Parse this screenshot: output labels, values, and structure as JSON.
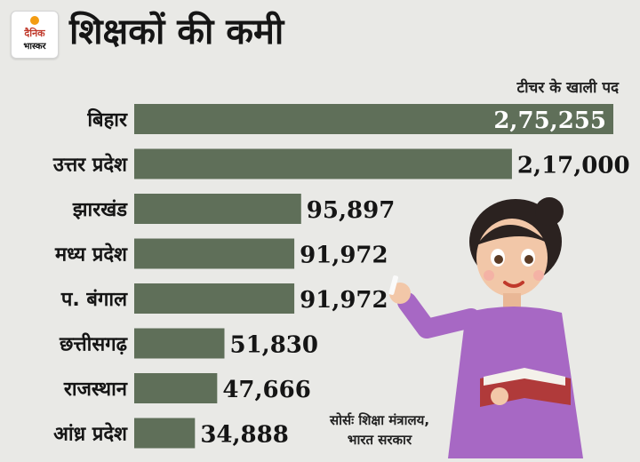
{
  "header": {
    "logo_text": [
      "दैनिक",
      "भास्कर"
    ],
    "title": "शिक्षकों की कमी"
  },
  "chart_data": {
    "type": "bar",
    "orientation": "horizontal",
    "categories": [
      "बिहार",
      "उत्तर प्रदेश",
      "झारखंड",
      "मध्य प्रदेश",
      "प. बंगाल",
      "छत्तीसगढ़",
      "राजस्थान",
      "आंध्र प्रदेश"
    ],
    "values": [
      275255,
      217000,
      95897,
      91972,
      91972,
      51830,
      47666,
      34888
    ],
    "value_labels": [
      "2,75,255",
      "2,17,000",
      "95,897",
      "91,972",
      "91,972",
      "51,830",
      "47,666",
      "34,888"
    ],
    "series": [
      {
        "name": "टीचर के खाली पद",
        "values": [
          275255,
          217000,
          95897,
          91972,
          91972,
          51830,
          47666,
          34888
        ]
      }
    ],
    "title": "शिक्षकों की कमी",
    "xlim": [
      0,
      275255
    ],
    "grid": false,
    "legend_position": "top-right",
    "bar_color": "#5f6f59"
  },
  "footer": {
    "source_line1": "सोर्सः शिक्षा मंत्रालय,",
    "source_line2": "भारत सरकार"
  },
  "colors": {
    "background": "#e9e9e6",
    "bar": "#5f6f59",
    "logo_accent": "#f39c12",
    "logo_red": "#c0392b"
  }
}
